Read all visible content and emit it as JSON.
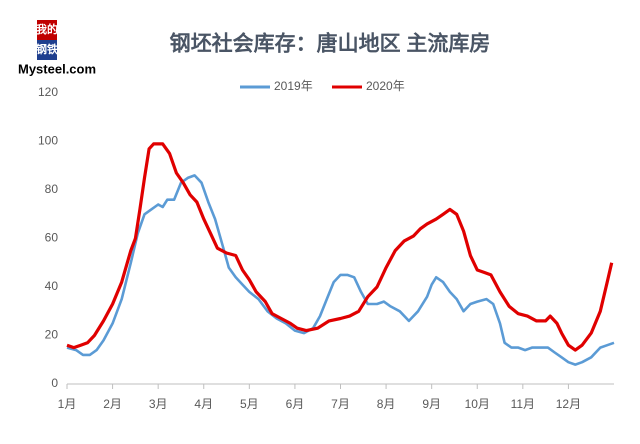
{
  "chart_data": {
    "type": "line",
    "title": "钢坯社会库存：唐山地区 主流库房",
    "brand_cn": [
      "我的",
      "钢铁"
    ],
    "brand": "Mysteel.com",
    "xlim": [
      1,
      13
    ],
    "xticks": [
      {
        "value": 1,
        "label": "1月"
      },
      {
        "value": 2,
        "label": "2月"
      },
      {
        "value": 3,
        "label": "3月"
      },
      {
        "value": 4,
        "label": "4月"
      },
      {
        "value": 5,
        "label": "5月"
      },
      {
        "value": 6,
        "label": "6月"
      },
      {
        "value": 7,
        "label": "7月"
      },
      {
        "value": 8,
        "label": "8月"
      },
      {
        "value": 9,
        "label": "9月"
      },
      {
        "value": 10,
        "label": "10月"
      },
      {
        "value": 11,
        "label": "11月"
      },
      {
        "value": 12,
        "label": "12月"
      }
    ],
    "ylim": [
      0,
      120
    ],
    "yticks": [
      0,
      20,
      40,
      60,
      80,
      100,
      120
    ],
    "grid": false,
    "legend": "top",
    "series": [
      {
        "name": "2019年",
        "color": "#5b9bd5",
        "x": [
          1.0,
          1.2,
          1.35,
          1.5,
          1.65,
          1.8,
          2.0,
          2.2,
          2.4,
          2.55,
          2.7,
          2.85,
          3.0,
          3.1,
          3.2,
          3.35,
          3.5,
          3.65,
          3.8,
          3.95,
          4.1,
          4.25,
          4.4,
          4.55,
          4.7,
          4.85,
          5.0,
          5.2,
          5.4,
          5.6,
          5.8,
          6.0,
          6.2,
          6.4,
          6.55,
          6.7,
          6.85,
          7.0,
          7.15,
          7.3,
          7.45,
          7.6,
          7.8,
          7.95,
          8.1,
          8.3,
          8.5,
          8.7,
          8.9,
          9.0,
          9.1,
          9.25,
          9.4,
          9.55,
          9.7,
          9.85,
          10.0,
          10.2,
          10.35,
          10.5,
          10.6,
          10.75,
          10.9,
          11.05,
          11.2,
          11.4,
          11.55,
          11.7,
          11.85,
          12.0,
          12.15,
          12.3,
          12.5,
          12.7,
          12.85,
          13.0
        ],
        "values": [
          15,
          14,
          12,
          12,
          14,
          18,
          25,
          35,
          50,
          62,
          70,
          72,
          74,
          73,
          76,
          76,
          83,
          85,
          86,
          83,
          75,
          68,
          58,
          48,
          44,
          41,
          38,
          35,
          30,
          27,
          25,
          22,
          21,
          23,
          28,
          35,
          42,
          45,
          45,
          44,
          38,
          33,
          33,
          34,
          32,
          30,
          26,
          30,
          36,
          41,
          44,
          42,
          38,
          35,
          30,
          33,
          34,
          35,
          33,
          25,
          17,
          15,
          15,
          14,
          15,
          15,
          15,
          13,
          11,
          9,
          8,
          9,
          11,
          15,
          16,
          17
        ]
      },
      {
        "name": "2020年",
        "color": "#e00000",
        "x": [
          1.0,
          1.15,
          1.3,
          1.45,
          1.6,
          1.8,
          2.0,
          2.2,
          2.4,
          2.5,
          2.6,
          2.7,
          2.8,
          2.9,
          3.1,
          3.25,
          3.4,
          3.55,
          3.7,
          3.85,
          4.0,
          4.15,
          4.3,
          4.5,
          4.7,
          4.85,
          5.0,
          5.15,
          5.35,
          5.5,
          5.7,
          5.9,
          6.05,
          6.25,
          6.5,
          6.75,
          7.0,
          7.2,
          7.4,
          7.6,
          7.8,
          8.0,
          8.2,
          8.4,
          8.6,
          8.75,
          8.9,
          9.1,
          9.25,
          9.4,
          9.55,
          9.7,
          9.85,
          10.0,
          10.15,
          10.3,
          10.5,
          10.7,
          10.9,
          11.1,
          11.3,
          11.5,
          11.6,
          11.75,
          11.85,
          12.0,
          12.15,
          12.3,
          12.5,
          12.7,
          12.85,
          12.95
        ],
        "values": [
          16,
          15,
          16,
          17,
          20,
          26,
          33,
          42,
          55,
          60,
          72,
          85,
          97,
          99,
          99,
          95,
          87,
          83,
          78,
          75,
          68,
          62,
          56,
          54,
          53,
          47,
          43,
          38,
          34,
          29,
          27,
          25,
          23,
          22,
          23,
          26,
          27,
          28,
          30,
          36,
          40,
          48,
          55,
          59,
          61,
          64,
          66,
          68,
          70,
          72,
          70,
          63,
          53,
          47,
          46,
          45,
          38,
          32,
          29,
          28,
          26,
          26,
          28,
          25,
          21,
          16,
          14,
          16,
          21,
          30,
          42,
          50
        ]
      }
    ]
  }
}
